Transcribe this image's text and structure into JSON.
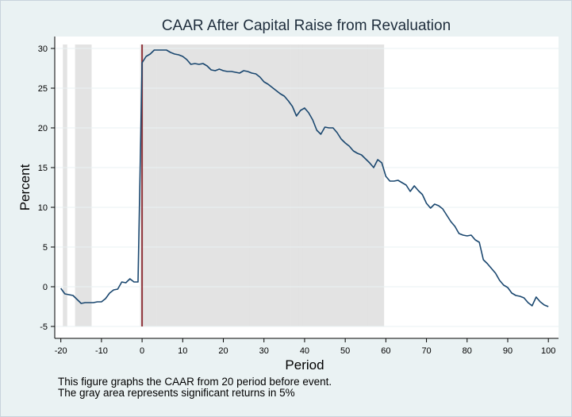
{
  "chart_data": {
    "type": "line",
    "title": "CAAR After Capital Raise from Revaluation",
    "xlabel": "Period",
    "ylabel": "Percent",
    "xlim": [
      -21.5,
      102.5
    ],
    "ylim": [
      -6.5,
      31.5
    ],
    "xticks": [
      -20,
      -10,
      0,
      10,
      20,
      30,
      40,
      50,
      60,
      70,
      80,
      90,
      100
    ],
    "yticks": [
      -5,
      0,
      5,
      10,
      15,
      20,
      25,
      30
    ],
    "grid": "horizontal",
    "legend": "none",
    "event_line_x": 0,
    "significant_periods": [
      -19,
      -16,
      -15,
      -14,
      -13,
      0,
      1,
      2,
      3,
      4,
      5,
      6,
      7,
      8,
      9,
      10,
      11,
      12,
      13,
      14,
      15,
      16,
      17,
      18,
      19,
      20,
      21,
      22,
      23,
      24,
      25,
      26,
      27,
      28,
      29,
      30,
      31,
      32,
      33,
      34,
      35,
      36,
      37,
      38,
      39,
      40,
      41,
      42,
      43,
      44,
      45,
      46,
      47,
      48,
      49,
      50,
      51,
      52,
      53,
      54,
      55,
      56,
      57,
      58,
      59
    ],
    "series": [
      {
        "name": "",
        "x": [
          -20,
          -19,
          -18,
          -17,
          -16,
          -15,
          -14,
          -13,
          -12,
          -11,
          -10,
          -9,
          -8,
          -7,
          -6,
          -5,
          -4,
          -3,
          -2,
          -1,
          0,
          1,
          2,
          3,
          4,
          5,
          6,
          7,
          8,
          9,
          10,
          11,
          12,
          13,
          14,
          15,
          16,
          17,
          18,
          19,
          20,
          21,
          22,
          23,
          24,
          25,
          26,
          27,
          28,
          29,
          30,
          31,
          32,
          33,
          34,
          35,
          36,
          37,
          38,
          39,
          40,
          41,
          42,
          43,
          44,
          45,
          46,
          47,
          48,
          49,
          50,
          51,
          52,
          53,
          54,
          55,
          56,
          57,
          58,
          59,
          60,
          61,
          62,
          63,
          64,
          65,
          66,
          67,
          68,
          69,
          70,
          71,
          72,
          73,
          74,
          75,
          76,
          77,
          78,
          79,
          80,
          81,
          82,
          83,
          84,
          85,
          86,
          87,
          88,
          89,
          90,
          91,
          92,
          93,
          94,
          95,
          96,
          97,
          98,
          99,
          100
        ],
        "values": [
          -0.2,
          -0.9,
          -1.0,
          -1.1,
          -1.6,
          -2.1,
          -2.0,
          -2.0,
          -2.0,
          -1.9,
          -1.9,
          -1.5,
          -0.8,
          -0.4,
          -0.3,
          0.6,
          0.5,
          1.0,
          0.6,
          0.6,
          28.2,
          29.0,
          29.3,
          29.8,
          29.8,
          29.8,
          29.8,
          29.5,
          29.3,
          29.2,
          29.0,
          28.6,
          28.0,
          28.1,
          28.0,
          28.1,
          27.8,
          27.3,
          27.2,
          27.4,
          27.2,
          27.1,
          27.1,
          27.0,
          26.9,
          27.2,
          27.1,
          26.9,
          26.8,
          26.4,
          25.8,
          25.5,
          25.1,
          24.7,
          24.3,
          24.0,
          23.4,
          22.7,
          21.5,
          22.2,
          22.5,
          21.9,
          21.0,
          19.7,
          19.2,
          20.1,
          20.0,
          20.0,
          19.4,
          18.6,
          18.1,
          17.7,
          17.1,
          16.8,
          16.6,
          16.1,
          15.6,
          15.0,
          16.0,
          15.6,
          13.9,
          13.3,
          13.3,
          13.4,
          13.1,
          12.8,
          12.0,
          12.7,
          12.1,
          11.6,
          10.5,
          9.9,
          10.4,
          10.2,
          9.8,
          9.0,
          8.2,
          7.6,
          6.7,
          6.5,
          6.4,
          6.5,
          5.9,
          5.6,
          3.4,
          2.9,
          2.3,
          1.7,
          0.8,
          0.2,
          -0.1,
          -0.8,
          -1.1,
          -1.2,
          -1.4,
          -2.0,
          -2.4,
          -1.3,
          -1.9,
          -2.3,
          -2.5
        ]
      }
    ]
  },
  "notes": {
    "line1": "This figure graphs the CAAR from 20 period before event.",
    "line2": "The gray area represents significant returns in 5%"
  },
  "colors": {
    "background_outer": "#eaf2f3",
    "plot_background": "#ffffff",
    "line": "#1a476f",
    "event_line": "#90353b",
    "significance_fill": "#e3e3e3",
    "grid": "#eaf2f3"
  }
}
